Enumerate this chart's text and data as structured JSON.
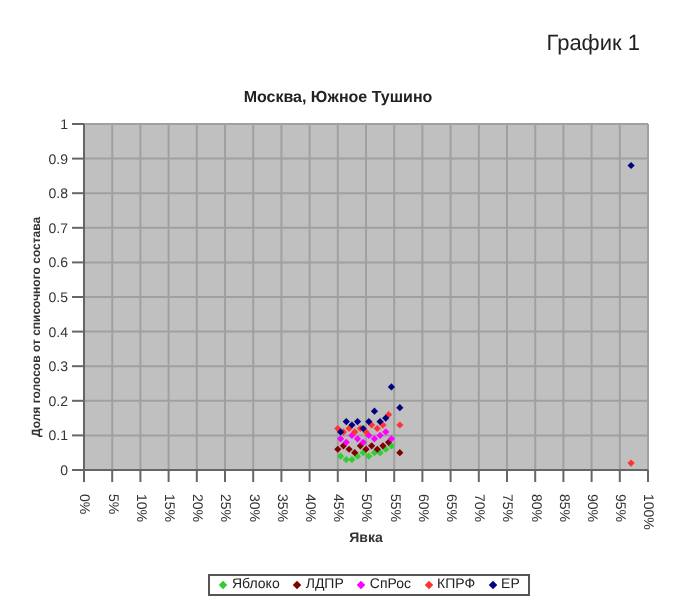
{
  "chart_data": {
    "type": "scatter",
    "title": "Москва, Южное Тушино",
    "annotations": [
      "График 1"
    ],
    "xlabel": "Явка",
    "ylabel": "Доля голосов от списочного состава",
    "xlim": [
      0,
      1
    ],
    "xticks": [
      {
        "value": 0,
        "label": "0%"
      },
      {
        "value": 0.05,
        "label": "5%"
      },
      {
        "value": 0.1,
        "label": "10%"
      },
      {
        "value": 0.15,
        "label": "15%"
      },
      {
        "value": 0.2,
        "label": "20%"
      },
      {
        "value": 0.25,
        "label": "25%"
      },
      {
        "value": 0.3,
        "label": "30%"
      },
      {
        "value": 0.35,
        "label": "35%"
      },
      {
        "value": 0.4,
        "label": "40%"
      },
      {
        "value": 0.45,
        "label": "45%"
      },
      {
        "value": 0.5,
        "label": "50%"
      },
      {
        "value": 0.55,
        "label": "55%"
      },
      {
        "value": 0.6,
        "label": "60%"
      },
      {
        "value": 0.65,
        "label": "65%"
      },
      {
        "value": 0.7,
        "label": "70%"
      },
      {
        "value": 0.75,
        "label": "75%"
      },
      {
        "value": 0.8,
        "label": "80%"
      },
      {
        "value": 0.85,
        "label": "85%"
      },
      {
        "value": 0.9,
        "label": "90%"
      },
      {
        "value": 0.95,
        "label": "95%"
      },
      {
        "value": 1,
        "label": "100%"
      }
    ],
    "ylim": [
      0,
      1
    ],
    "yticks": [
      0,
      0.1,
      0.2,
      0.3,
      0.4,
      0.5,
      0.6,
      0.7,
      0.8,
      0.9,
      1
    ],
    "grid": true,
    "legend": "bottom",
    "marker": "diamond",
    "series": [
      {
        "name": "Яблоко",
        "color": "#33cc33",
        "x": [
          0.455,
          0.465,
          0.475,
          0.485,
          0.495,
          0.505,
          0.515,
          0.525,
          0.535,
          0.545
        ],
        "values": [
          0.04,
          0.03,
          0.03,
          0.04,
          0.05,
          0.04,
          0.05,
          0.05,
          0.06,
          0.07
        ]
      },
      {
        "name": "ЛДПР",
        "color": "#800000",
        "x": [
          0.45,
          0.46,
          0.47,
          0.48,
          0.49,
          0.5,
          0.51,
          0.52,
          0.53,
          0.54,
          0.56
        ],
        "values": [
          0.06,
          0.07,
          0.06,
          0.05,
          0.07,
          0.06,
          0.07,
          0.06,
          0.07,
          0.08,
          0.05
        ]
      },
      {
        "name": "СпРос",
        "color": "#ff00ff",
        "x": [
          0.455,
          0.465,
          0.475,
          0.485,
          0.495,
          0.505,
          0.515,
          0.525,
          0.535,
          0.545
        ],
        "values": [
          0.09,
          0.08,
          0.1,
          0.09,
          0.08,
          0.1,
          0.09,
          0.1,
          0.11,
          0.09
        ]
      },
      {
        "name": "КПРФ",
        "color": "#ff3333",
        "x": [
          0.45,
          0.46,
          0.47,
          0.48,
          0.49,
          0.5,
          0.51,
          0.52,
          0.53,
          0.54,
          0.56,
          0.97
        ],
        "values": [
          0.12,
          0.11,
          0.12,
          0.11,
          0.12,
          0.11,
          0.13,
          0.12,
          0.13,
          0.16,
          0.13,
          0.02
        ]
      },
      {
        "name": "ЕР",
        "color": "#000080",
        "x": [
          0.455,
          0.465,
          0.475,
          0.485,
          0.495,
          0.505,
          0.515,
          0.525,
          0.535,
          0.545,
          0.56,
          0.97
        ],
        "values": [
          0.11,
          0.14,
          0.13,
          0.14,
          0.12,
          0.14,
          0.17,
          0.14,
          0.15,
          0.24,
          0.18,
          0.88
        ]
      }
    ]
  }
}
